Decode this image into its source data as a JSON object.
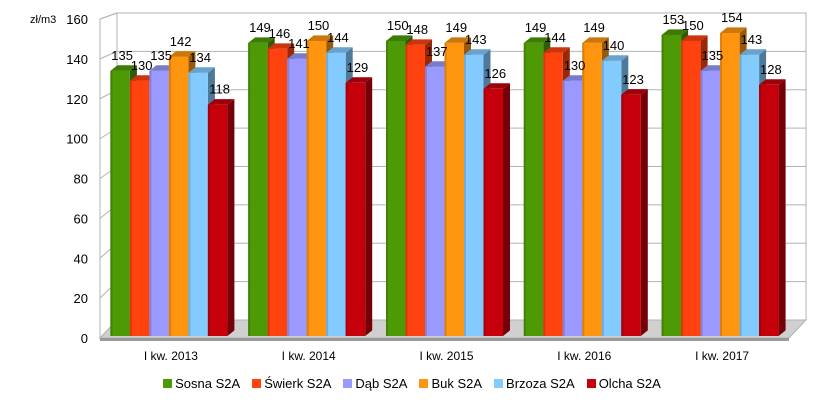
{
  "chart_data": {
    "type": "bar",
    "style": "3d-clustered-column",
    "title": "",
    "ylabel": "zł/m3",
    "xlabel": "",
    "ylim": [
      0,
      160
    ],
    "yticks": [
      0,
      20,
      40,
      60,
      80,
      100,
      120,
      140,
      160
    ],
    "grid": true,
    "legend_position": "bottom",
    "categories": [
      "I kw. 2013",
      "I kw. 2014",
      "I kw. 2015",
      "I kw. 2016",
      "I kw. 2017"
    ],
    "series": [
      {
        "name": "Sosna S2A",
        "color": "#4e9a06",
        "values": [
          135,
          149,
          150,
          149,
          153
        ]
      },
      {
        "name": "Świerk S2A",
        "color": "#ff420e",
        "values": [
          130,
          146,
          148,
          144,
          150
        ]
      },
      {
        "name": "Dąb S2A",
        "color": "#9999ff",
        "values": [
          135,
          141,
          137,
          130,
          135
        ]
      },
      {
        "name": "Buk S2A",
        "color": "#ff950e",
        "values": [
          142,
          150,
          149,
          149,
          154
        ]
      },
      {
        "name": "Brzoza S2A",
        "color": "#83caff",
        "values": [
          134,
          144,
          143,
          140,
          143
        ]
      },
      {
        "name": "Olcha S2A",
        "color": "#c5000b",
        "values": [
          118,
          129,
          126,
          123,
          128
        ]
      }
    ]
  }
}
